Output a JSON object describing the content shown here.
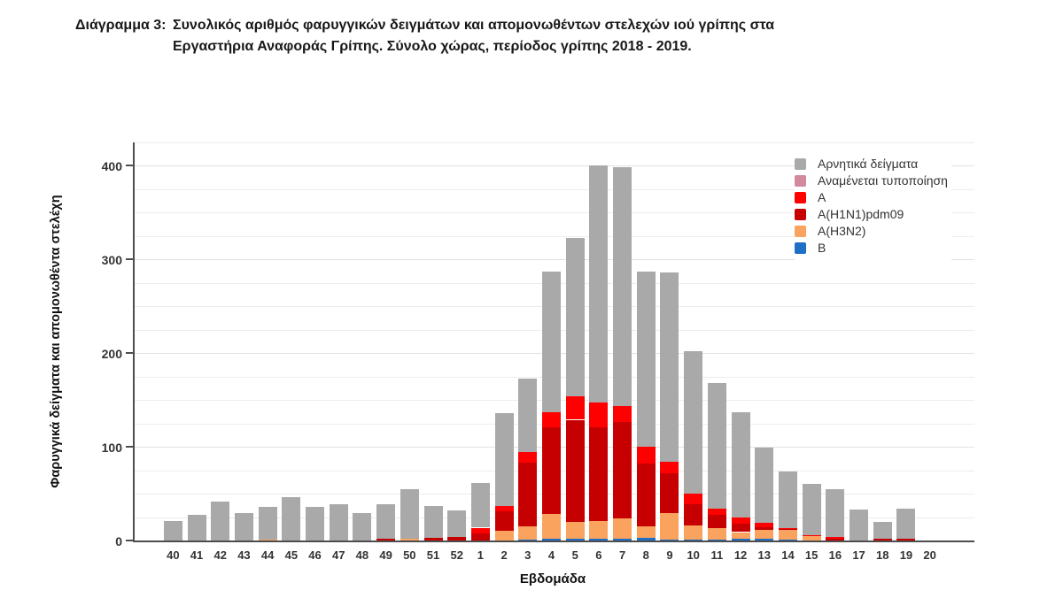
{
  "title": {
    "label": "Διάγραμμα 3:",
    "line1": "Συνολικός αριθμός φαρυγγικών δειγμάτων και απομονωθέντων στελεχών ιού γρίπης στα",
    "line2": "Εργαστήρια Αναφοράς Γρίπης. Σύνολο χώρας, περίοδος γρίπης 2018 - 2019."
  },
  "chart_data": {
    "type": "bar",
    "subtype": "stacked-vertical",
    "title": "Διάγραμμα 3: Συνολικός αριθμός φαρυγγικών δειγμάτων και απομονωθέντων στελεχών ιού γρίπης στα Εργαστήρια Αναφοράς Γρίπης. Σύνολο χώρας, περίοδος γρίπης 2018 - 2019.",
    "xlabel": "Εβδομάδα",
    "ylabel": "Φαρυγγικά δείγματα και απομονωθέντα στελέχη",
    "categories": [
      "40",
      "41",
      "42",
      "43",
      "44",
      "45",
      "46",
      "47",
      "48",
      "49",
      "50",
      "51",
      "52",
      "1",
      "2",
      "3",
      "4",
      "5",
      "6",
      "7",
      "8",
      "9",
      "10",
      "11",
      "12",
      "13",
      "14",
      "15",
      "16",
      "17",
      "18",
      "19",
      "20"
    ],
    "yticks": [
      0,
      100,
      200,
      300,
      400
    ],
    "ylim": [
      0,
      425
    ],
    "grid": {
      "minor_step": 25,
      "major_step": 100,
      "visible": true
    },
    "legend_position": "top-right",
    "series": [
      {
        "name": "B",
        "color": "#1f6fc6",
        "values": [
          0,
          0,
          0,
          0,
          0,
          0,
          0,
          0,
          0,
          0,
          0,
          0,
          0,
          0,
          0,
          1,
          2,
          2,
          2,
          2,
          3,
          1,
          1,
          1,
          2,
          2,
          1,
          0,
          0,
          0,
          0,
          0,
          0
        ]
      },
      {
        "name": "A(H3N2)",
        "color": "#f9a35f",
        "values": [
          0,
          0,
          0,
          0,
          1,
          0,
          0,
          0,
          0,
          0,
          2,
          0,
          0,
          0,
          10,
          14,
          26,
          18,
          19,
          22,
          12,
          28,
          15,
          12,
          7,
          9,
          10,
          5,
          0,
          0,
          0,
          0,
          0
        ]
      },
      {
        "name": "A(H1N1)pdm09",
        "color": "#c60000",
        "values": [
          0,
          0,
          0,
          0,
          0,
          0,
          0,
          0,
          0,
          2,
          0,
          3,
          4,
          8,
          21,
          68,
          93,
          109,
          100,
          103,
          67,
          43,
          23,
          14,
          9,
          3,
          1,
          0,
          2,
          0,
          2,
          2,
          0
        ]
      },
      {
        "name": "A",
        "color": "#ff0000",
        "values": [
          0,
          0,
          0,
          0,
          0,
          0,
          0,
          0,
          0,
          0,
          0,
          0,
          0,
          6,
          6,
          11,
          16,
          25,
          26,
          17,
          18,
          12,
          11,
          7,
          7,
          5,
          1,
          1,
          2,
          0,
          0,
          0,
          0
        ]
      },
      {
        "name": "Αναμένεται τυποποίηση",
        "color": "#d48a9d",
        "values": [
          0,
          0,
          0,
          0,
          0,
          0,
          0,
          0,
          0,
          0,
          0,
          0,
          0,
          0,
          0,
          0,
          0,
          0,
          0,
          0,
          0,
          0,
          0,
          0,
          0,
          0,
          0,
          0,
          0,
          0,
          0,
          0,
          0
        ]
      },
      {
        "name": "Αρνητικά δείγματα",
        "color": "#a9a9a9",
        "values": [
          21,
          27,
          42,
          29,
          35,
          46,
          36,
          39,
          29,
          37,
          53,
          34,
          28,
          47,
          99,
          78,
          150,
          169,
          253,
          255,
          187,
          202,
          152,
          134,
          112,
          80,
          60,
          55,
          51,
          33,
          18,
          32,
          0
        ]
      }
    ],
    "totals": [
      21,
      27,
      42,
      29,
      36,
      46,
      36,
      39,
      29,
      39,
      55,
      37,
      32,
      61,
      136,
      172,
      287,
      323,
      400,
      399,
      287,
      286,
      202,
      168,
      137,
      99,
      73,
      61,
      55,
      33,
      20,
      34,
      0
    ],
    "legend": [
      {
        "label": "Αρνητικά δείγματα",
        "color": "#a9a9a9"
      },
      {
        "label": "Αναμένεται τυποποίηση",
        "color": "#d48a9d"
      },
      {
        "label": "A",
        "color": "#ff0000"
      },
      {
        "label": "A(H1N1)pdm09",
        "color": "#c60000"
      },
      {
        "label": "A(H3N2)",
        "color": "#f9a35f"
      },
      {
        "label": "B",
        "color": "#1f6fc6"
      }
    ]
  }
}
